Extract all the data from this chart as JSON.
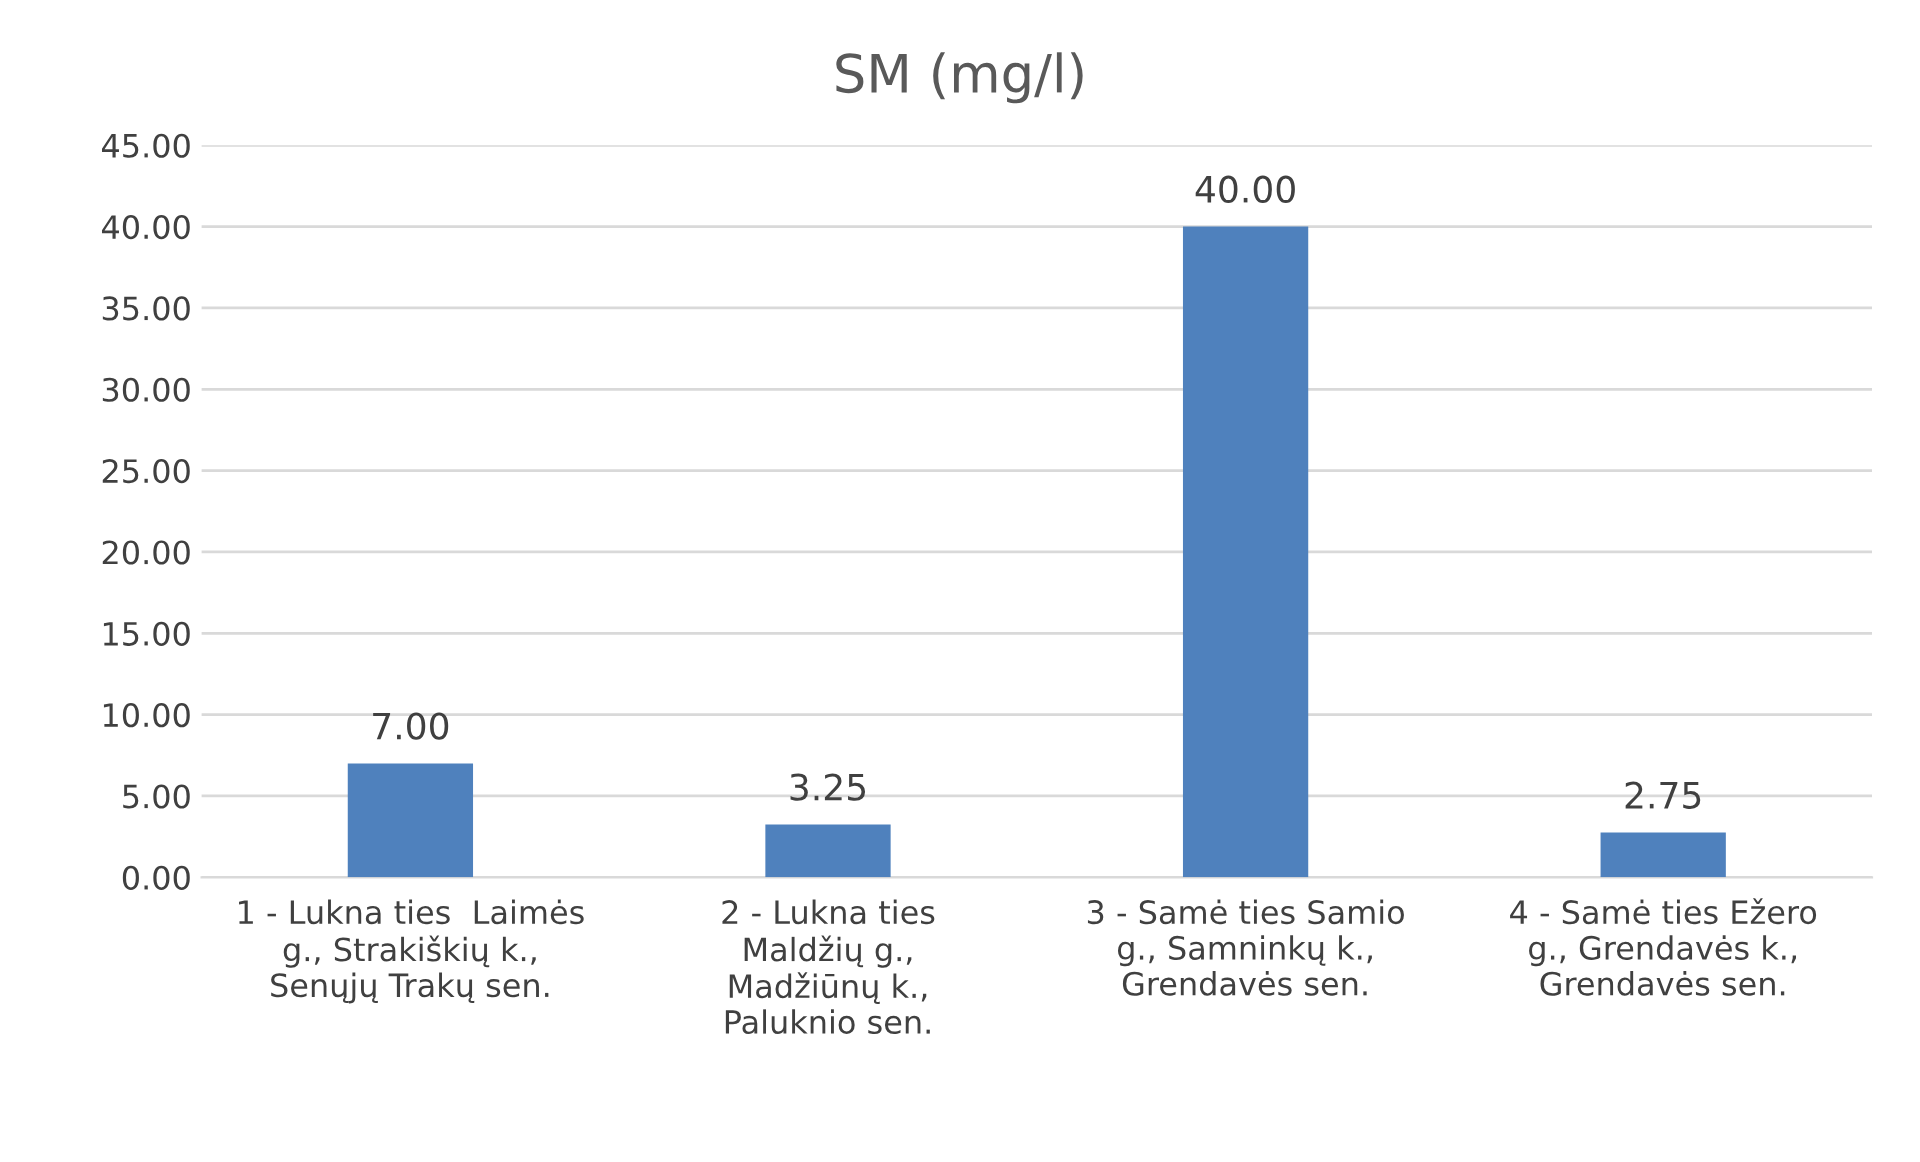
{
  "chart_data": {
    "type": "bar",
    "title": "SM (mg/l)",
    "categories": [
      "1 - Lukna ties  Laimės\ng., Strakiškių k.,\nSenųjų Trakų sen.",
      "2 - Lukna ties\nMaldžių g.,\nMadžiūnų k.,\nPaluknio sen.",
      "3 - Samė ties Samio\ng., Samninkų k.,\nGrendavės sen.",
      "4 - Samė ties Ežero\ng., Grendavės k.,\nGrendavės sen."
    ],
    "values": [
      7.0,
      3.25,
      40.0,
      2.75
    ],
    "value_labels": [
      "7.00",
      "3.25",
      "40.00",
      "2.75"
    ],
    "color": "#4f81bd",
    "ylim": [
      0,
      45
    ],
    "yticks": [
      {
        "value": 0,
        "label": "0.00"
      },
      {
        "value": 5,
        "label": "5.00"
      },
      {
        "value": 10,
        "label": "10.00"
      },
      {
        "value": 15,
        "label": "15.00"
      },
      {
        "value": 20,
        "label": "20.00"
      },
      {
        "value": 25,
        "label": "25.00"
      },
      {
        "value": 30,
        "label": "30.00"
      },
      {
        "value": 35,
        "label": "35.00"
      },
      {
        "value": 40,
        "label": "40.00"
      },
      {
        "value": 45,
        "label": "45.00"
      }
    ],
    "grid": "y",
    "legend": false
  }
}
